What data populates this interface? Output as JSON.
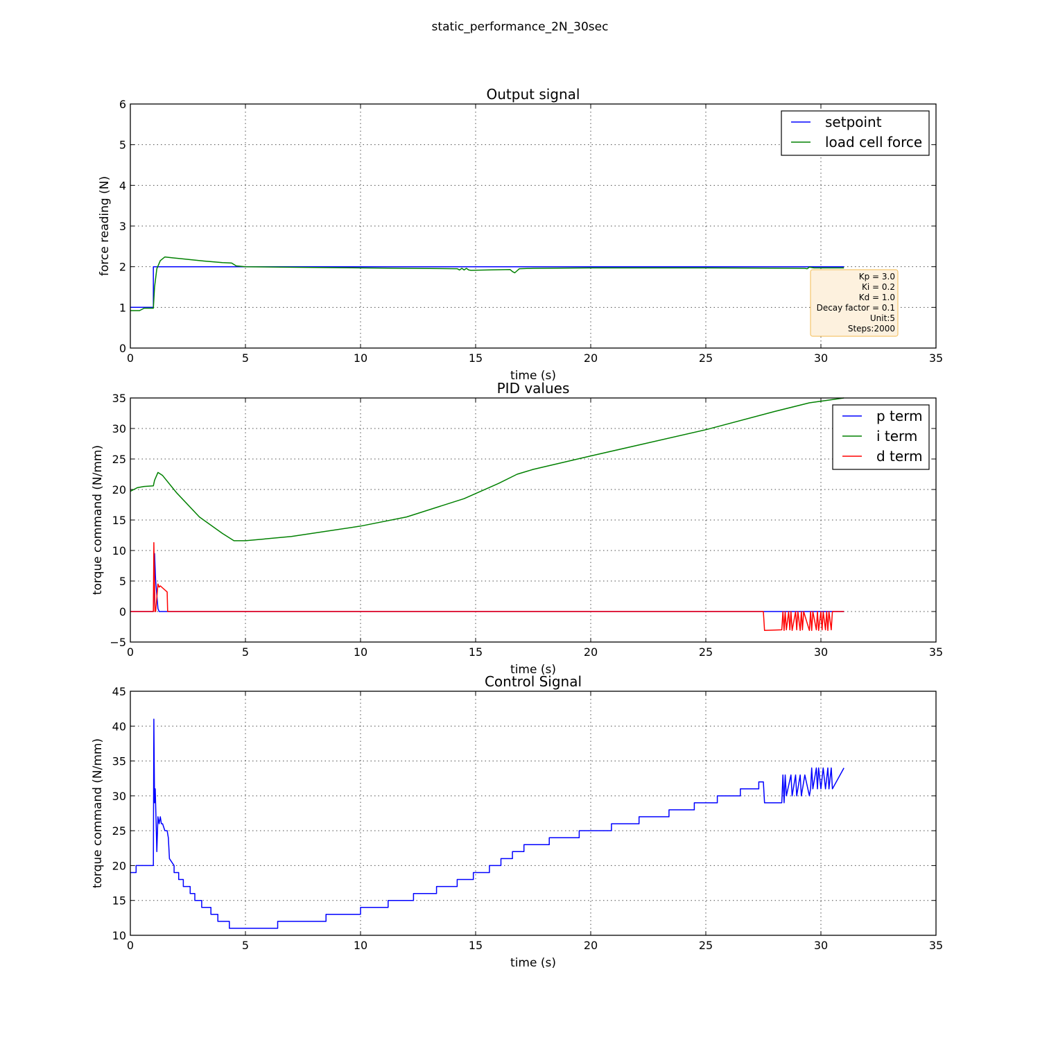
{
  "figure": {
    "suptitle": "static_performance_2N_30sec"
  },
  "chart_data": [
    {
      "type": "line",
      "title": "Output signal",
      "xlabel": "time (s)",
      "ylabel": "force reading (N)",
      "xlim": [
        0,
        35
      ],
      "ylim": [
        0,
        6
      ],
      "xticks": [
        "0",
        "5",
        "10",
        "15",
        "20",
        "25",
        "30",
        "35"
      ],
      "yticks": [
        "0",
        "1",
        "2",
        "3",
        "4",
        "5",
        "6"
      ],
      "grid": true,
      "legend_position": "top-right",
      "annotation": {
        "lines": [
          "Kp = 3.0",
          "Ki = 0.2",
          "Kd = 1.0",
          "Decay factor = 0.1",
          "Unit:5",
          "Steps:2000"
        ],
        "position": "bottom-right",
        "facecolor": "#fdf1de",
        "edgecolor": "#f5c66e"
      },
      "series": [
        {
          "name": "setpoint",
          "color": "#0000ff",
          "x": [
            0,
            1.0,
            1.0,
            31.0
          ],
          "y": [
            1,
            1,
            2,
            2
          ]
        },
        {
          "name": "load cell force",
          "color": "#008000",
          "x": [
            0,
            0.4,
            0.6,
            1.0,
            1.05,
            1.15,
            1.3,
            1.5,
            1.8,
            2.5,
            3.2,
            4.0,
            4.4,
            4.6,
            5.0,
            8,
            10,
            12,
            14.2,
            14.3,
            14.4,
            14.5,
            14.6,
            14.7,
            14.8,
            15.5,
            16.5,
            16.6,
            16.7,
            16.8,
            16.9,
            17.5,
            20,
            25,
            29.3,
            29.4,
            29.5,
            29.7,
            31.0
          ],
          "y": [
            0.92,
            0.92,
            0.98,
            0.98,
            1.5,
            1.95,
            2.15,
            2.24,
            2.22,
            2.18,
            2.14,
            2.1,
            2.09,
            2.02,
            2.0,
            1.98,
            1.97,
            1.96,
            1.95,
            1.92,
            1.96,
            1.92,
            1.96,
            1.92,
            1.91,
            1.92,
            1.93,
            1.88,
            1.85,
            1.9,
            1.95,
            1.96,
            1.97,
            1.97,
            1.96,
            1.95,
            1.99,
            1.97,
            1.97
          ]
        }
      ]
    },
    {
      "type": "line",
      "title": "PID values",
      "xlabel": "time (s)",
      "ylabel": "torque command (N/mm)",
      "xlim": [
        0,
        35
      ],
      "ylim": [
        -5,
        35
      ],
      "xticks": [
        "0",
        "5",
        "10",
        "15",
        "20",
        "25",
        "30",
        "35"
      ],
      "yticks": [
        "−5",
        "0",
        "5",
        "10",
        "15",
        "20",
        "25",
        "30",
        "35"
      ],
      "grid": true,
      "legend_position": "top-right",
      "series": [
        {
          "name": "p term",
          "color": "#0000ff",
          "x": [
            0,
            1.0,
            1.05,
            1.1,
            1.2,
            1.25,
            31.0
          ],
          "y": [
            0,
            0,
            9.5,
            5,
            0.5,
            0,
            0
          ]
        },
        {
          "name": "i term",
          "color": "#008000",
          "x": [
            0,
            0.3,
            0.6,
            1.0,
            1.05,
            1.2,
            1.4,
            2,
            3,
            4,
            4.5,
            5,
            7,
            10,
            12,
            14.5,
            16,
            16.8,
            17.5,
            20,
            25,
            28,
            29.5,
            31.0
          ],
          "y": [
            19.7,
            20.3,
            20.5,
            20.6,
            21.5,
            22.8,
            22.3,
            19.5,
            15.5,
            12.8,
            11.6,
            11.6,
            12.3,
            14.0,
            15.5,
            18.5,
            21.0,
            22.5,
            23.3,
            25.5,
            29.8,
            32.8,
            34.2,
            35.0
          ]
        },
        {
          "name": "d term",
          "color": "#ff0000",
          "x": [
            0,
            1.0,
            1.02,
            1.07,
            1.1,
            1.2,
            1.25,
            1.3,
            1.6,
            1.62,
            1.65,
            27.5,
            27.55,
            28.3,
            28.35,
            28.4,
            28.45,
            28.5,
            28.6,
            28.65,
            28.7,
            28.75,
            28.9,
            28.95,
            29.0,
            29.1,
            29.15,
            29.2,
            29.25,
            29.5,
            29.55,
            29.6,
            29.65,
            29.8,
            29.85,
            29.9,
            30.0,
            30.05,
            30.1,
            30.2,
            30.25,
            30.3,
            30.35,
            30.45,
            30.5,
            30.55,
            31.0
          ],
          "y": [
            0,
            0,
            11.3,
            0,
            0,
            4.5,
            4.0,
            4.2,
            3.2,
            0,
            0,
            0,
            -3.1,
            -3.0,
            0,
            -3.1,
            0,
            -3.0,
            0,
            -3.0,
            0,
            -3.1,
            0,
            -3.0,
            0,
            -3.1,
            0,
            -3.0,
            0,
            -3.1,
            0,
            -3.1,
            0,
            -3.0,
            0,
            -3.1,
            0,
            -3.0,
            0,
            -3.0,
            0,
            -3.1,
            0,
            -3.0,
            0,
            0,
            0
          ]
        }
      ]
    },
    {
      "type": "line",
      "title": "Control Signal",
      "xlabel": "time (s)",
      "ylabel": "torque command (N/mm)",
      "xlim": [
        0,
        35
      ],
      "ylim": [
        10,
        45
      ],
      "xticks": [
        "0",
        "5",
        "10",
        "15",
        "20",
        "25",
        "30",
        "35"
      ],
      "yticks": [
        "10",
        "15",
        "20",
        "25",
        "30",
        "35",
        "40",
        "45"
      ],
      "grid": true,
      "series": [
        {
          "name": "",
          "color": "#0000ff",
          "x": [
            0,
            0.25,
            0.25,
            1.0,
            1.02,
            1.05,
            1.08,
            1.12,
            1.15,
            1.2,
            1.25,
            1.3,
            1.35,
            1.4,
            1.5,
            1.6,
            1.65,
            1.7,
            1.9,
            1.9,
            2.1,
            2.1,
            2.3,
            2.3,
            2.6,
            2.6,
            2.8,
            2.8,
            3.1,
            3.1,
            3.5,
            3.5,
            3.8,
            3.8,
            4.3,
            4.3,
            6.4,
            6.4,
            8.5,
            8.5,
            10.0,
            10.0,
            11.2,
            11.2,
            12.3,
            12.3,
            13.3,
            13.3,
            14.2,
            14.2,
            14.9,
            14.9,
            15.6,
            15.6,
            16.1,
            16.1,
            16.6,
            16.6,
            17.1,
            17.1,
            18.2,
            18.2,
            19.5,
            19.5,
            20.9,
            20.9,
            22.1,
            22.1,
            23.4,
            23.4,
            24.5,
            24.5,
            25.5,
            25.5,
            26.5,
            26.5,
            27.3,
            27.3,
            27.5,
            27.55,
            28.3,
            28.35,
            28.4,
            28.45,
            28.5,
            28.7,
            28.75,
            28.9,
            28.95,
            29.1,
            29.15,
            29.3,
            29.5,
            29.55,
            29.6,
            29.65,
            29.8,
            29.85,
            29.9,
            30.0,
            30.1,
            30.2,
            30.3,
            30.35,
            30.45,
            30.5,
            31.0
          ],
          "y": [
            19,
            19,
            20,
            20,
            41,
            29,
            31,
            26,
            22,
            27,
            26,
            27,
            26,
            26,
            25,
            25,
            24,
            21,
            20,
            19,
            19,
            18,
            18,
            17,
            17,
            16,
            16,
            15,
            15,
            14,
            14,
            13,
            13,
            12,
            12,
            11,
            11,
            12,
            12,
            13,
            13,
            14,
            14,
            15,
            15,
            16,
            16,
            17,
            17,
            18,
            18,
            19,
            19,
            20,
            20,
            21,
            21,
            22,
            22,
            23,
            23,
            24,
            24,
            25,
            25,
            26,
            26,
            27,
            27,
            28,
            28,
            29,
            29,
            30,
            30,
            31,
            31,
            32,
            32,
            29,
            29,
            33,
            29,
            33,
            30,
            33,
            30,
            33,
            30,
            33,
            30,
            33,
            30,
            31,
            34,
            31,
            34,
            31,
            34,
            31,
            34,
            31,
            34,
            31,
            34,
            31,
            34
          ]
        }
      ]
    }
  ]
}
